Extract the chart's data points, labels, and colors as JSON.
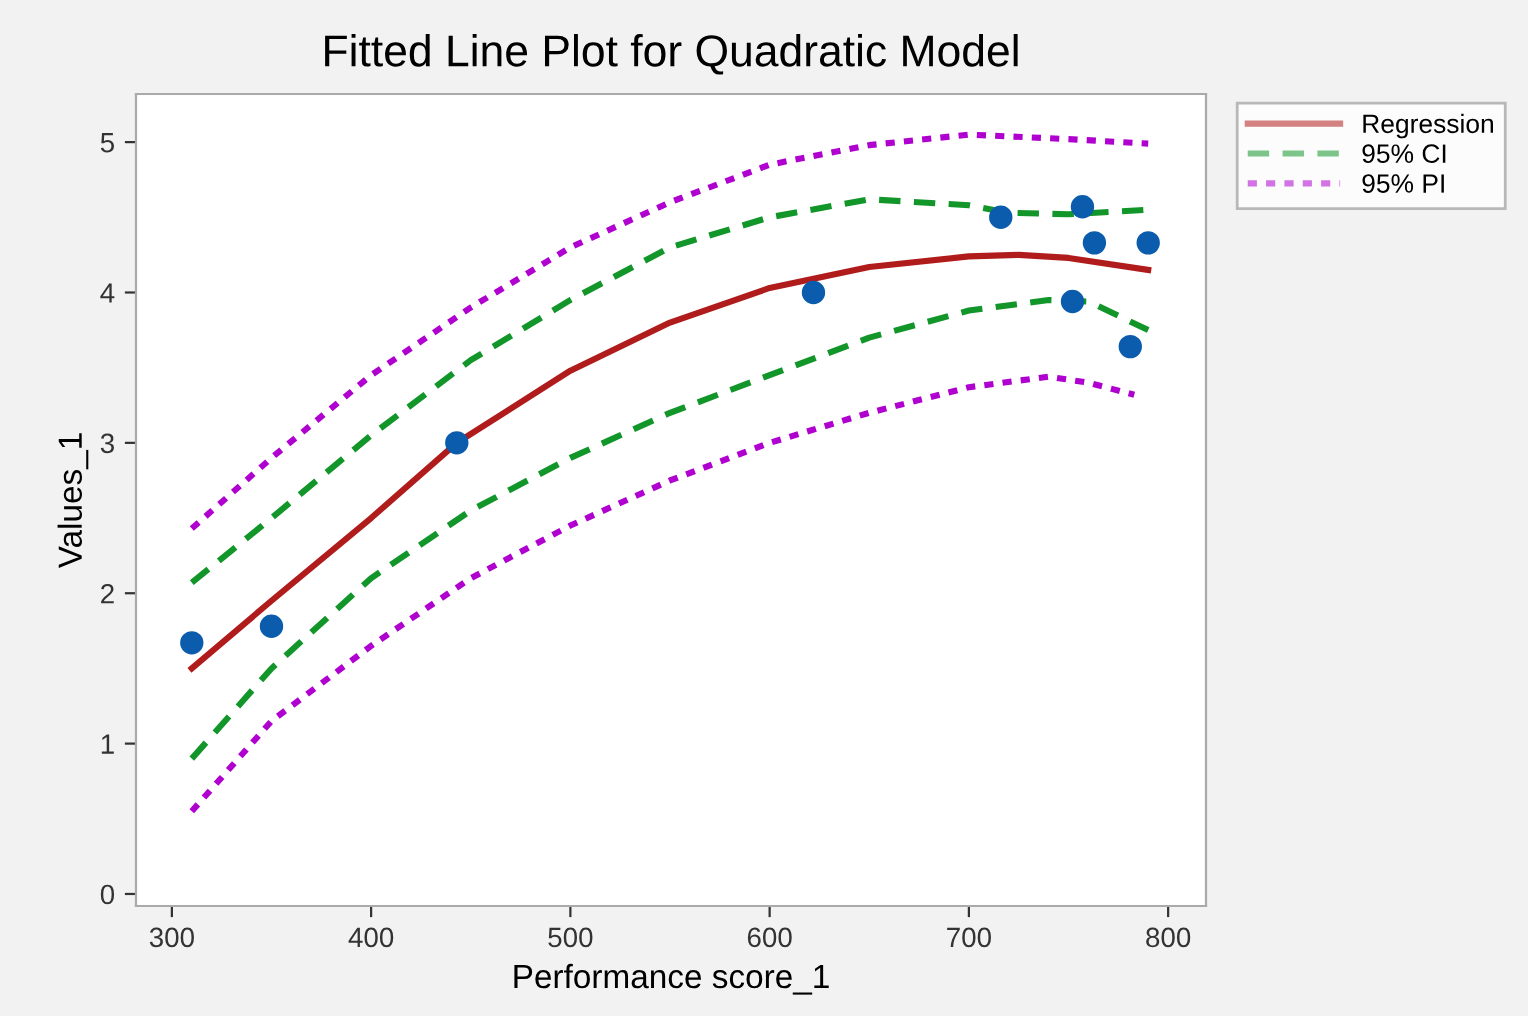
{
  "chart_data": {
    "type": "line",
    "title": "Fitted Line Plot for Quadratic Model",
    "xlabel": "Performance score_1",
    "ylabel": "Values_1",
    "xlim": [
      282,
      819
    ],
    "ylim": [
      -0.08,
      5.32
    ],
    "xticks": [
      300,
      400,
      500,
      600,
      700,
      800
    ],
    "yticks": [
      0,
      1,
      2,
      3,
      4,
      5
    ],
    "grid": false,
    "legend": "top right",
    "series": [
      {
        "name": null,
        "type": "scatter",
        "marker": "circle",
        "color": "#0b5cad",
        "x": [
          310,
          350,
          443,
          622,
          716,
          752,
          757,
          763,
          781,
          790
        ],
        "values": [
          1.67,
          1.78,
          3.0,
          4.0,
          4.5,
          3.94,
          4.57,
          4.33,
          3.64,
          4.33
        ]
      },
      {
        "name": "Regression",
        "line_style": "solid",
        "color": "#b01c1c",
        "x": [
          310,
          350,
          400,
          443,
          500,
          550,
          600,
          650,
          700,
          725,
          750,
          790
        ],
        "values": [
          1.5,
          1.95,
          2.5,
          3.0,
          3.48,
          3.8,
          4.03,
          4.17,
          4.24,
          4.25,
          4.23,
          4.15
        ]
      },
      {
        "name": "95% CI",
        "line_style": "dashed",
        "color": "#12962a",
        "x": [
          310,
          350,
          400,
          450,
          500,
          550,
          600,
          650,
          700,
          720,
          750,
          790
        ],
        "values": [
          2.07,
          2.5,
          3.05,
          3.55,
          3.95,
          4.3,
          4.5,
          4.62,
          4.58,
          4.53,
          4.52,
          4.55
        ]
      },
      {
        "name": null,
        "line_style": "dashed",
        "color": "#12962a",
        "x": [
          310,
          350,
          400,
          450,
          500,
          550,
          600,
          650,
          700,
          740,
          760,
          790
        ],
        "values": [
          0.9,
          1.5,
          2.1,
          2.55,
          2.9,
          3.2,
          3.45,
          3.7,
          3.88,
          3.95,
          3.94,
          3.75
        ]
      },
      {
        "name": "95% PI",
        "line_style": "dotted",
        "color": "#b000d0",
        "x": [
          310,
          350,
          400,
          450,
          500,
          550,
          600,
          650,
          700,
          750,
          790
        ],
        "values": [
          2.43,
          2.9,
          3.45,
          3.9,
          4.3,
          4.6,
          4.85,
          4.98,
          5.05,
          5.02,
          4.99
        ]
      },
      {
        "name": null,
        "line_style": "dotted",
        "color": "#b000d0",
        "x": [
          310,
          350,
          400,
          450,
          500,
          550,
          600,
          650,
          700,
          740,
          760,
          783
        ],
        "values": [
          0.55,
          1.15,
          1.65,
          2.1,
          2.45,
          2.75,
          3.0,
          3.2,
          3.37,
          3.44,
          3.4,
          3.32
        ]
      }
    ]
  }
}
